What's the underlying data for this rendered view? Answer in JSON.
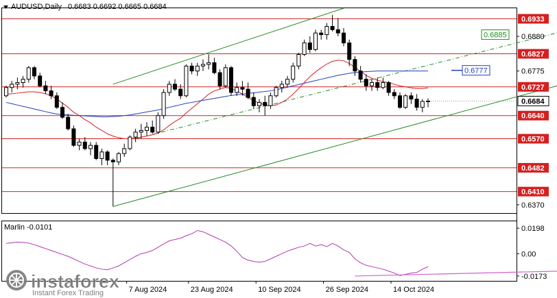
{
  "header": {
    "symbol": "AUDUSD,Daily",
    "ohlc": "0.6683 0.6692 0.6665 0.6684",
    "menu_icon": "triangle-down-icon"
  },
  "indicator": {
    "name": "Marlin -0.0101",
    "axis_labels": [
      "0.0198",
      "0.00",
      "-0.0173"
    ]
  },
  "watermark": {
    "brand": "instaforex",
    "tagline": "Instant Forex Trading"
  },
  "colors": {
    "bull": "#ffffff",
    "bear": "#000000",
    "level_line": "#d42020",
    "level_badge": "#d42020",
    "channel": "#228b22",
    "ma_red": "#d42020",
    "ma_blue": "#1f3fbf",
    "target_blue": "#1f3fbf",
    "target_green": "#228b22",
    "oscillator": "#b03ab0"
  },
  "chart_data": {
    "type": "candlestick",
    "title": "AUDUSD,Daily",
    "ylim": [
      0.6345,
      0.6965
    ],
    "x_tick_labels": [
      "7 Aug 2024",
      "23 Aug 2024",
      "10 Sep 2024",
      "26 Sep 2024",
      "14 Oct 2024"
    ],
    "horizontal_levels": [
      {
        "value": 0.6933,
        "label": "0.6933"
      },
      {
        "value": 0.6827,
        "label": "0.6827"
      },
      {
        "value": 0.6727,
        "label": "0.6727"
      },
      {
        "value": 0.664,
        "label": "0.6640"
      },
      {
        "value": 0.657,
        "label": "0.6570"
      },
      {
        "value": 0.6482,
        "label": "0.6482"
      },
      {
        "value": 0.641,
        "label": "0.6410"
      }
    ],
    "price_axis_labels": [
      {
        "value": 0.688,
        "label": "0.6880"
      },
      {
        "value": 0.6775,
        "label": "0.6775"
      },
      {
        "value": 0.637,
        "label": "0.6370"
      }
    ],
    "current_price": {
      "value": 0.6684,
      "label": "0.6684"
    },
    "targets": [
      {
        "value": 0.6885,
        "label": "0.6885",
        "style": "green"
      },
      {
        "value": 0.6777,
        "label": "0.6777",
        "style": "blue"
      }
    ],
    "candles": [
      [
        0.67,
        0.673,
        0.6695,
        0.6725
      ],
      [
        0.6725,
        0.6745,
        0.671,
        0.6735
      ],
      [
        0.6735,
        0.6755,
        0.672,
        0.674
      ],
      [
        0.674,
        0.676,
        0.6725,
        0.675
      ],
      [
        0.675,
        0.679,
        0.674,
        0.6785
      ],
      [
        0.6785,
        0.679,
        0.675,
        0.676
      ],
      [
        0.676,
        0.677,
        0.6725,
        0.673
      ],
      [
        0.673,
        0.6745,
        0.6705,
        0.6715
      ],
      [
        0.6715,
        0.673,
        0.669,
        0.67
      ],
      [
        0.67,
        0.671,
        0.666,
        0.6665
      ],
      [
        0.6665,
        0.668,
        0.663,
        0.6635
      ],
      [
        0.6635,
        0.6645,
        0.6595,
        0.66
      ],
      [
        0.66,
        0.661,
        0.6545,
        0.655
      ],
      [
        0.655,
        0.657,
        0.6535,
        0.656
      ],
      [
        0.656,
        0.6575,
        0.6535,
        0.654
      ],
      [
        0.654,
        0.656,
        0.652,
        0.655
      ],
      [
        0.655,
        0.656,
        0.6505,
        0.651
      ],
      [
        0.651,
        0.654,
        0.649,
        0.653
      ],
      [
        0.653,
        0.6535,
        0.649,
        0.6505
      ],
      [
        0.6505,
        0.651,
        0.6365,
        0.65
      ],
      [
        0.65,
        0.653,
        0.649,
        0.6525
      ],
      [
        0.6525,
        0.6555,
        0.6515,
        0.654
      ],
      [
        0.654,
        0.658,
        0.6535,
        0.6575
      ],
      [
        0.6575,
        0.66,
        0.656,
        0.659
      ],
      [
        0.659,
        0.6615,
        0.657,
        0.6595
      ],
      [
        0.6595,
        0.662,
        0.658,
        0.6605
      ],
      [
        0.6605,
        0.6625,
        0.6585,
        0.659
      ],
      [
        0.659,
        0.665,
        0.6585,
        0.664
      ],
      [
        0.664,
        0.672,
        0.663,
        0.671
      ],
      [
        0.671,
        0.6745,
        0.67,
        0.6735
      ],
      [
        0.6735,
        0.675,
        0.6715,
        0.672
      ],
      [
        0.672,
        0.6735,
        0.669,
        0.67
      ],
      [
        0.67,
        0.6795,
        0.6695,
        0.679
      ],
      [
        0.679,
        0.68,
        0.6765,
        0.6775
      ],
      [
        0.6775,
        0.68,
        0.676,
        0.679
      ],
      [
        0.679,
        0.681,
        0.6775,
        0.6795
      ],
      [
        0.6795,
        0.6825,
        0.678,
        0.68
      ],
      [
        0.68,
        0.6815,
        0.6765,
        0.677
      ],
      [
        0.677,
        0.678,
        0.672,
        0.673
      ],
      [
        0.673,
        0.6795,
        0.6725,
        0.6785
      ],
      [
        0.6785,
        0.679,
        0.67,
        0.671
      ],
      [
        0.671,
        0.674,
        0.67,
        0.6725
      ],
      [
        0.6725,
        0.6745,
        0.67,
        0.672
      ],
      [
        0.672,
        0.674,
        0.669,
        0.6695
      ],
      [
        0.6695,
        0.671,
        0.666,
        0.667
      ],
      [
        0.667,
        0.669,
        0.665,
        0.668
      ],
      [
        0.668,
        0.67,
        0.664,
        0.667
      ],
      [
        0.667,
        0.671,
        0.666,
        0.67
      ],
      [
        0.67,
        0.673,
        0.6695,
        0.6725
      ],
      [
        0.6725,
        0.6745,
        0.671,
        0.6735
      ],
      [
        0.6735,
        0.676,
        0.6725,
        0.675
      ],
      [
        0.675,
        0.68,
        0.674,
        0.679
      ],
      [
        0.679,
        0.683,
        0.678,
        0.6825
      ],
      [
        0.6825,
        0.687,
        0.682,
        0.686
      ],
      [
        0.686,
        0.688,
        0.683,
        0.684
      ],
      [
        0.684,
        0.69,
        0.6835,
        0.689
      ],
      [
        0.689,
        0.69,
        0.687,
        0.6885
      ],
      [
        0.6885,
        0.692,
        0.687,
        0.691
      ],
      [
        0.691,
        0.6945,
        0.6895,
        0.69
      ],
      [
        0.69,
        0.6935,
        0.688,
        0.689
      ],
      [
        0.689,
        0.6905,
        0.685,
        0.686
      ],
      [
        0.686,
        0.687,
        0.679,
        0.681
      ],
      [
        0.681,
        0.682,
        0.676,
        0.6775
      ],
      [
        0.6775,
        0.679,
        0.674,
        0.675
      ],
      [
        0.675,
        0.6765,
        0.6715,
        0.673
      ],
      [
        0.673,
        0.675,
        0.6715,
        0.674
      ],
      [
        0.674,
        0.6755,
        0.6715,
        0.6725
      ],
      [
        0.6725,
        0.6755,
        0.672,
        0.674
      ],
      [
        0.674,
        0.6745,
        0.67,
        0.671
      ],
      [
        0.671,
        0.672,
        0.669,
        0.67
      ],
      [
        0.67,
        0.671,
        0.666,
        0.6665
      ],
      [
        0.6665,
        0.6705,
        0.666,
        0.67
      ],
      [
        0.67,
        0.671,
        0.6675,
        0.669
      ],
      [
        0.669,
        0.6705,
        0.6655,
        0.6665
      ],
      [
        0.6665,
        0.669,
        0.665,
        0.6683
      ],
      [
        0.6683,
        0.6692,
        0.6665,
        0.6684
      ]
    ],
    "ma_red": [
      0.6705,
      0.6706,
      0.6708,
      0.671,
      0.6712,
      0.6712,
      0.671,
      0.6706,
      0.67,
      0.669,
      0.6678,
      0.6665,
      0.665,
      0.664,
      0.6628,
      0.6618,
      0.6605,
      0.6595,
      0.6585,
      0.6578,
      0.6573,
      0.657,
      0.657,
      0.6572,
      0.6575,
      0.6578,
      0.6582,
      0.6587,
      0.6597,
      0.661,
      0.6622,
      0.6632,
      0.6648,
      0.6662,
      0.6676,
      0.669,
      0.6705,
      0.6715,
      0.672,
      0.6725,
      0.6722,
      0.6715,
      0.6705,
      0.6695,
      0.6685,
      0.6678,
      0.6672,
      0.667,
      0.6672,
      0.668,
      0.669,
      0.6705,
      0.6722,
      0.674,
      0.6758,
      0.6772,
      0.6785,
      0.6796,
      0.6804,
      0.6808,
      0.6806,
      0.6798,
      0.6786,
      0.6774,
      0.6762,
      0.6753,
      0.6747,
      0.6743,
      0.674,
      0.6735,
      0.673,
      0.6727,
      0.6724,
      0.6722,
      0.6722,
      0.6724
    ],
    "ma_blue": [
      0.668,
      0.6676,
      0.6672,
      0.6668,
      0.6664,
      0.666,
      0.6656,
      0.6652,
      0.6648,
      0.6645,
      0.6643,
      0.6642,
      0.6641,
      0.664,
      0.6639,
      0.6638,
      0.6637,
      0.6636,
      0.6636,
      0.6637,
      0.6638,
      0.664,
      0.6642,
      0.6645,
      0.6648,
      0.6651,
      0.6654,
      0.6657,
      0.6661,
      0.6665,
      0.6669,
      0.6673,
      0.6677,
      0.668,
      0.6683,
      0.6686,
      0.6689,
      0.6692,
      0.6695,
      0.6698,
      0.6701,
      0.6703,
      0.6705,
      0.6707,
      0.6709,
      0.6711,
      0.6713,
      0.6715,
      0.6718,
      0.6722,
      0.6726,
      0.673,
      0.6734,
      0.6738,
      0.6742,
      0.6746,
      0.675,
      0.6754,
      0.6758,
      0.6762,
      0.6765,
      0.6768,
      0.677,
      0.6772,
      0.6773,
      0.6774,
      0.6775,
      0.6775,
      0.6775,
      0.6775,
      0.6775,
      0.6775,
      0.6775,
      0.6775,
      0.6775,
      0.6775
    ],
    "oscillator": [
      0.008,
      0.0085,
      0.009,
      0.0088,
      0.0082,
      0.007,
      0.0055,
      0.004,
      0.0025,
      0.001,
      -0.0005,
      -0.002,
      -0.004,
      -0.006,
      -0.008,
      -0.0095,
      -0.011,
      -0.012,
      -0.0125,
      -0.011,
      -0.0095,
      -0.007,
      -0.0045,
      -0.002,
      0.0,
      0.001,
      0.0025,
      0.005,
      0.0075,
      0.01,
      0.011,
      0.012,
      0.014,
      0.0155,
      0.018,
      0.017,
      0.015,
      0.013,
      0.011,
      0.009,
      0.006,
      0.002,
      -0.003,
      -0.005,
      -0.006,
      -0.0065,
      -0.006,
      -0.004,
      -0.002,
      0.0,
      0.002,
      0.0035,
      0.005,
      0.006,
      0.008,
      0.006,
      0.007,
      0.0055,
      0.008,
      0.006,
      0.003,
      0.001,
      -0.004,
      -0.007,
      -0.009,
      -0.01,
      -0.011,
      -0.012,
      -0.0135,
      -0.015,
      -0.017,
      -0.016,
      -0.015,
      -0.0145,
      -0.012,
      -0.0101
    ],
    "osc_ylim": [
      -0.02,
      0.0225
    ],
    "channel": {
      "lower": [
        [
          19,
          0.6365
        ],
        [
          99,
          0.6735
        ]
      ],
      "upper": [
        [
          19,
          0.6735
        ],
        [
          60,
          0.6965
        ]
      ],
      "middle_dashed": [
        [
          23,
          0.657
        ],
        [
          99,
          0.6895
        ]
      ]
    },
    "osc_divergence_line": [
      [
        62,
        -0.0173
      ],
      [
        99,
        -0.0135
      ]
    ]
  }
}
